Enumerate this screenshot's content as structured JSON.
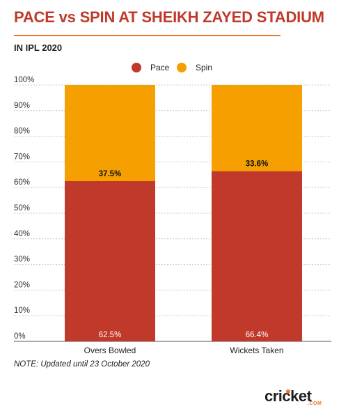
{
  "chart_data": {
    "type": "bar",
    "stacked": true,
    "title": "PACE vs SPIN AT SHEIKH ZAYED STADIUM",
    "subtitle": "IN IPL 2020",
    "categories": [
      "Overs Bowled",
      "Wickets Taken"
    ],
    "series": [
      {
        "name": "Pace",
        "color": "#c0392b",
        "values": [
          62.5,
          66.4
        ],
        "labels": [
          "62.5%",
          "66.4%"
        ]
      },
      {
        "name": "Spin",
        "color": "#f5a000",
        "values": [
          37.5,
          33.6
        ],
        "labels": [
          "37.5%",
          "33.6%"
        ]
      }
    ],
    "yticks": [
      "0%",
      "10%",
      "20%",
      "30%",
      "40%",
      "50%",
      "60%",
      "70%",
      "80%",
      "90%",
      "100%"
    ],
    "ylim": [
      0,
      100
    ],
    "grid": true,
    "legend_position": "top-center"
  },
  "note": "NOTE: Updated until 23 October 2020",
  "logo": {
    "word": "cricket",
    "suffix": ".COM"
  }
}
